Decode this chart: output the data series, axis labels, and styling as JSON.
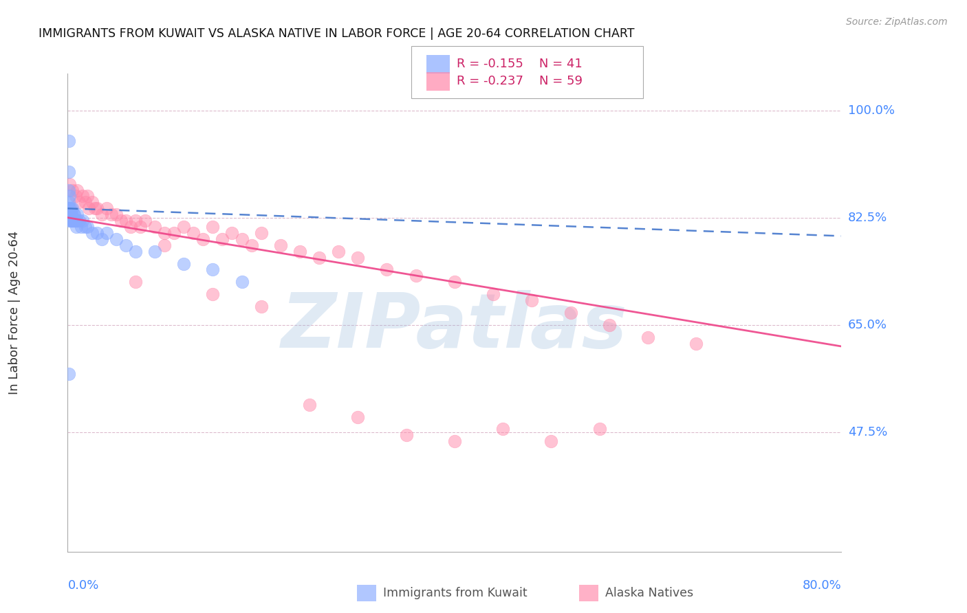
{
  "title": "IMMIGRANTS FROM KUWAIT VS ALASKA NATIVE IN LABOR FORCE | AGE 20-64 CORRELATION CHART",
  "source": "Source: ZipAtlas.com",
  "ylabel": "In Labor Force | Age 20-64",
  "x_label_bottom_left": "0.0%",
  "x_label_bottom_right": "80.0%",
  "y_labels": [
    "100.0%",
    "82.5%",
    "65.0%",
    "47.5%"
  ],
  "y_label_values": [
    1.0,
    0.825,
    0.65,
    0.475
  ],
  "legend_blue_r": "R = -0.155",
  "legend_blue_n": "N = 41",
  "legend_pink_r": "R = -0.237",
  "legend_pink_n": "N = 59",
  "blue_color": "#88aaff",
  "pink_color": "#ff88aa",
  "blue_line_color": "#4477cc",
  "pink_line_color": "#ee4488",
  "label_color": "#4488ff",
  "watermark": "ZIPatlas",
  "watermark_color": "#99bbdd",
  "xlim": [
    0.0,
    0.8
  ],
  "ylim": [
    0.28,
    1.06
  ],
  "blue_x": [
    0.001,
    0.001,
    0.001,
    0.001,
    0.001,
    0.002,
    0.002,
    0.002,
    0.002,
    0.003,
    0.003,
    0.003,
    0.004,
    0.004,
    0.005,
    0.005,
    0.006,
    0.006,
    0.007,
    0.007,
    0.008,
    0.009,
    0.01,
    0.01,
    0.012,
    0.014,
    0.015,
    0.018,
    0.02,
    0.025,
    0.03,
    0.035,
    0.04,
    0.05,
    0.06,
    0.07,
    0.09,
    0.12,
    0.15,
    0.18,
    0.001
  ],
  "blue_y": [
    0.95,
    0.9,
    0.87,
    0.85,
    0.84,
    0.86,
    0.84,
    0.83,
    0.82,
    0.84,
    0.83,
    0.82,
    0.83,
    0.82,
    0.84,
    0.82,
    0.83,
    0.82,
    0.83,
    0.82,
    0.82,
    0.81,
    0.83,
    0.82,
    0.82,
    0.81,
    0.82,
    0.81,
    0.81,
    0.8,
    0.8,
    0.79,
    0.8,
    0.79,
    0.78,
    0.77,
    0.77,
    0.75,
    0.74,
    0.72,
    0.57
  ],
  "pink_x": [
    0.002,
    0.005,
    0.008,
    0.01,
    0.012,
    0.015,
    0.018,
    0.02,
    0.022,
    0.025,
    0.028,
    0.03,
    0.035,
    0.04,
    0.045,
    0.05,
    0.055,
    0.06,
    0.065,
    0.07,
    0.075,
    0.08,
    0.09,
    0.1,
    0.11,
    0.12,
    0.13,
    0.14,
    0.15,
    0.16,
    0.17,
    0.18,
    0.19,
    0.2,
    0.22,
    0.24,
    0.26,
    0.28,
    0.3,
    0.33,
    0.36,
    0.4,
    0.44,
    0.48,
    0.52,
    0.56,
    0.6,
    0.65,
    0.07,
    0.1,
    0.15,
    0.2,
    0.25,
    0.3,
    0.35,
    0.4,
    0.45,
    0.5,
    0.55
  ],
  "pink_y": [
    0.88,
    0.87,
    0.86,
    0.87,
    0.85,
    0.86,
    0.85,
    0.86,
    0.84,
    0.85,
    0.84,
    0.84,
    0.83,
    0.84,
    0.83,
    0.83,
    0.82,
    0.82,
    0.81,
    0.82,
    0.81,
    0.82,
    0.81,
    0.8,
    0.8,
    0.81,
    0.8,
    0.79,
    0.81,
    0.79,
    0.8,
    0.79,
    0.78,
    0.8,
    0.78,
    0.77,
    0.76,
    0.77,
    0.76,
    0.74,
    0.73,
    0.72,
    0.7,
    0.69,
    0.67,
    0.65,
    0.63,
    0.62,
    0.72,
    0.78,
    0.7,
    0.68,
    0.52,
    0.5,
    0.47,
    0.46,
    0.48,
    0.46,
    0.48
  ],
  "blue_line_x": [
    0.0,
    0.8
  ],
  "blue_line_y": [
    0.84,
    0.795
  ],
  "pink_line_x": [
    0.0,
    0.8
  ],
  "pink_line_y": [
    0.825,
    0.615
  ]
}
